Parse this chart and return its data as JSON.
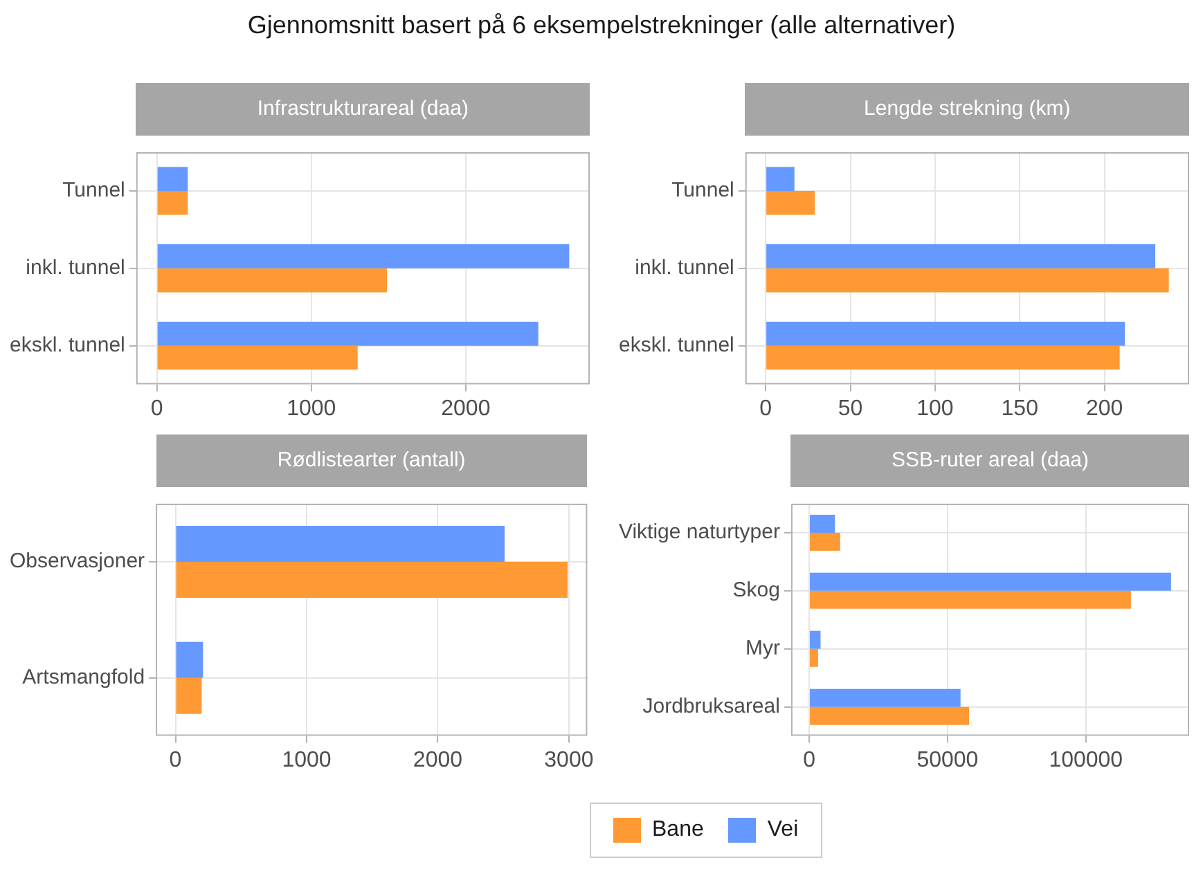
{
  "chart_data": [
    {
      "type": "bar",
      "orientation": "horizontal",
      "title": "Infrastrukturareal (daa)",
      "annotations": [
        "Gjennomsnitt basert på 6 eksempelstrekninger (alle alternativer)"
      ],
      "categories": [
        "Tunnel",
        "inkl. tunnel",
        "ekskl. tunnel"
      ],
      "series": [
        {
          "name": "Bane",
          "color": "#ff9933",
          "values": [
            200,
            1490,
            1300
          ]
        },
        {
          "name": "Vei",
          "color": "#6699ff",
          "values": [
            200,
            2670,
            2470
          ]
        }
      ],
      "xlim": [
        -134,
        2803
      ],
      "xticks": [
        0,
        1000,
        2000
      ],
      "grid": true,
      "legend": "bottom"
    },
    {
      "type": "bar",
      "orientation": "horizontal",
      "title": "Lengde strekning (km)",
      "categories": [
        "Tunnel",
        "inkl. tunnel",
        "ekskl. tunnel"
      ],
      "series": [
        {
          "name": "Bane",
          "color": "#ff9933",
          "values": [
            29,
            238,
            209
          ]
        },
        {
          "name": "Vei",
          "color": "#6699ff",
          "values": [
            17,
            230,
            212
          ]
        }
      ],
      "xlim": [
        -12,
        250
      ],
      "xticks": [
        0,
        50,
        100,
        150,
        200
      ],
      "grid": true,
      "legend": "bottom"
    },
    {
      "type": "bar",
      "orientation": "horizontal",
      "title": "Rødlistearter (antall)",
      "categories": [
        "Observasjoner",
        "Artsmangfold"
      ],
      "series": [
        {
          "name": "Bane",
          "color": "#ff9933",
          "values": [
            2990,
            200
          ]
        },
        {
          "name": "Vei",
          "color": "#6699ff",
          "values": [
            2510,
            210
          ]
        }
      ],
      "xlim": [
        -150,
        3140
      ],
      "xticks": [
        0,
        1000,
        2000,
        3000
      ],
      "grid": true,
      "legend": "bottom"
    },
    {
      "type": "bar",
      "orientation": "horizontal",
      "title": "SSB-ruter areal (daa)",
      "categories": [
        "Viktige naturtyper",
        "Skog",
        "Myr",
        "Jordbruksareal"
      ],
      "series": [
        {
          "name": "Bane",
          "color": "#ff9933",
          "values": [
            11200,
            116300,
            3200,
            57800
          ]
        },
        {
          "name": "Vei",
          "color": "#6699ff",
          "values": [
            9300,
            130800,
            4100,
            54700
          ]
        }
      ],
      "xlim": [
        -6540,
        137340
      ],
      "xticks": [
        0,
        50000,
        100000
      ],
      "grid": true,
      "legend": "bottom"
    }
  ]
}
